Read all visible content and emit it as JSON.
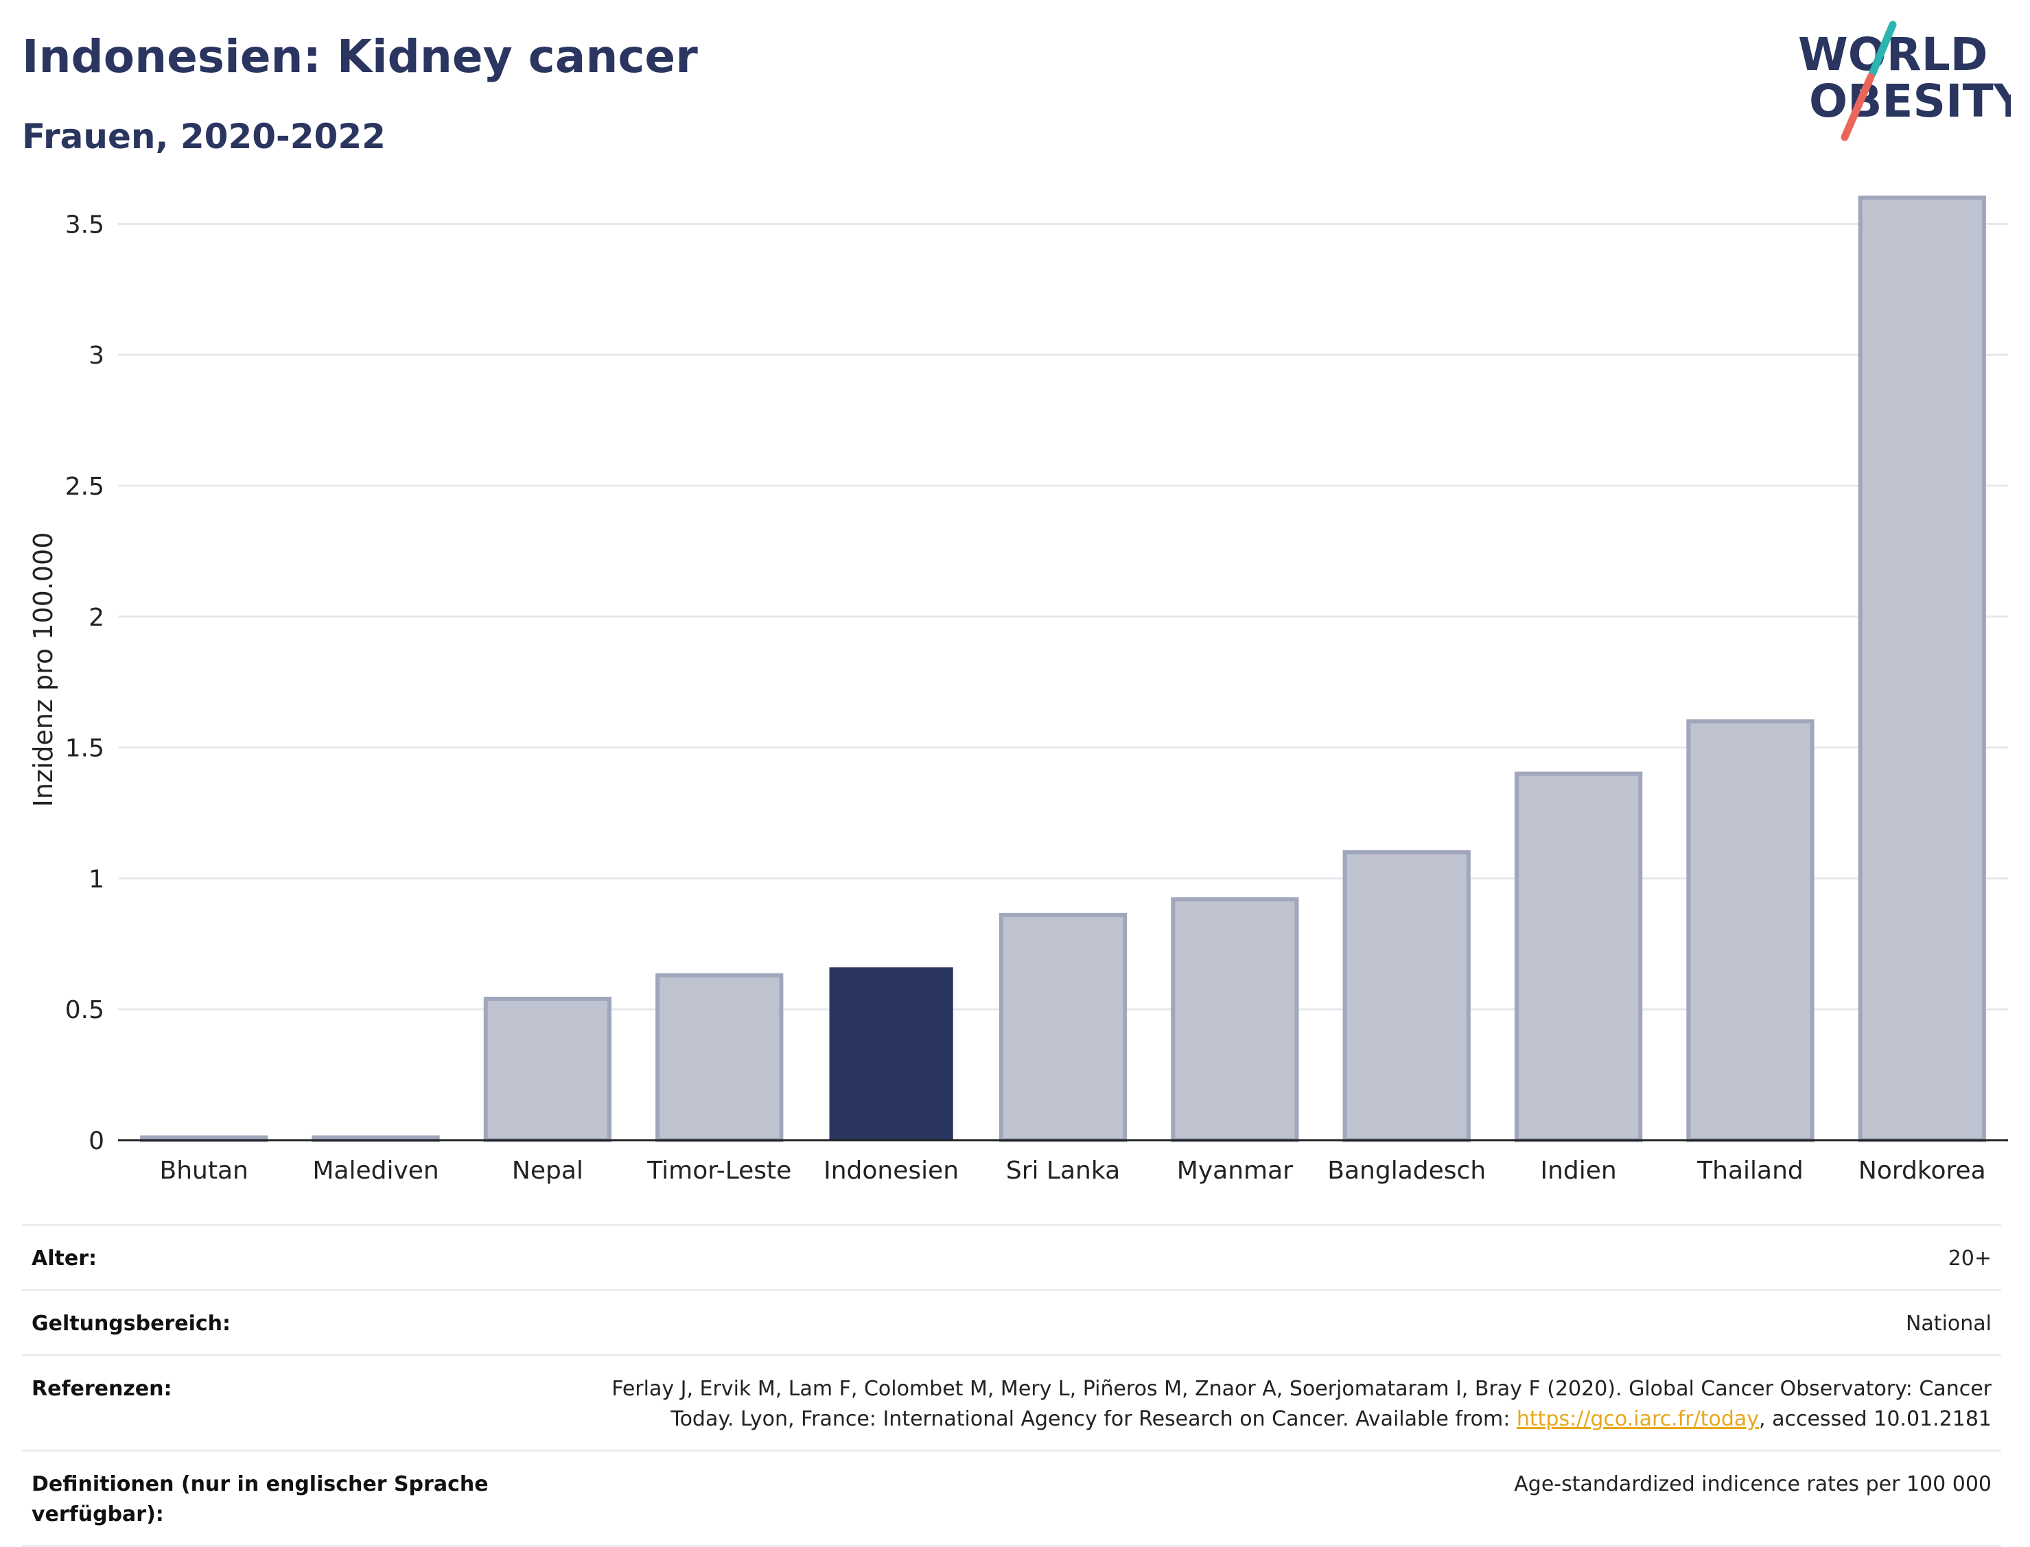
{
  "header": {
    "title": "Indonesien: Kidney cancer",
    "subtitle": "Frauen, 2020-2022"
  },
  "logo": {
    "line1": "WORLD",
    "line2": "OBESITY",
    "colors": {
      "text": "#2a3560",
      "slash_top": "#2ab5b0",
      "slash_bottom": "#e8675a"
    }
  },
  "chart_data": {
    "type": "bar",
    "categories": [
      "Bhutan",
      "Malediven",
      "Nepal",
      "Timor-Leste",
      "Indonesien",
      "Sri Lanka",
      "Myanmar",
      "Bangladesch",
      "Indien",
      "Thailand",
      "Nordkorea"
    ],
    "values": [
      0.01,
      0.01,
      0.54,
      0.63,
      0.66,
      0.86,
      0.92,
      1.1,
      1.4,
      1.6,
      3.6
    ],
    "highlight": "Indonesien",
    "ylabel": "Inzidenz pro 100.000",
    "xlabel": "",
    "ylim": [
      0,
      3.7
    ],
    "yticks": [
      0,
      0.5,
      1,
      1.5,
      2,
      2.5,
      3,
      3.5
    ],
    "ytick_labels": [
      "0",
      "0.5",
      "1",
      "1.5",
      "2",
      "2.5",
      "3",
      "3.5"
    ],
    "grid": true,
    "colors": {
      "bar": "#bfc3d0",
      "bar_stroke": "#a0a6bb",
      "highlight": "#2a3560"
    }
  },
  "info": {
    "age": {
      "label": "Alter:",
      "value": "20+"
    },
    "scope": {
      "label": "Geltungsbereich:",
      "value": "National"
    },
    "references": {
      "label": "Referenzen:",
      "text_before": "Ferlay J, Ervik M, Lam F, Colombet M, Mery L, Piñeros M, Znaor A, Soerjomataram I, Bray F (2020). Global Cancer Observatory: Cancer Today. Lyon, France: International Agency for Research on Cancer. Available from: ",
      "link": "https://gco.iarc.fr/today",
      "text_after": ", accessed 10.01.2181"
    },
    "definitions": {
      "label": "Definitionen (nur in englischer Sprache verfügbar):",
      "value": "Age-standardized indicence rates per 100 000"
    }
  }
}
